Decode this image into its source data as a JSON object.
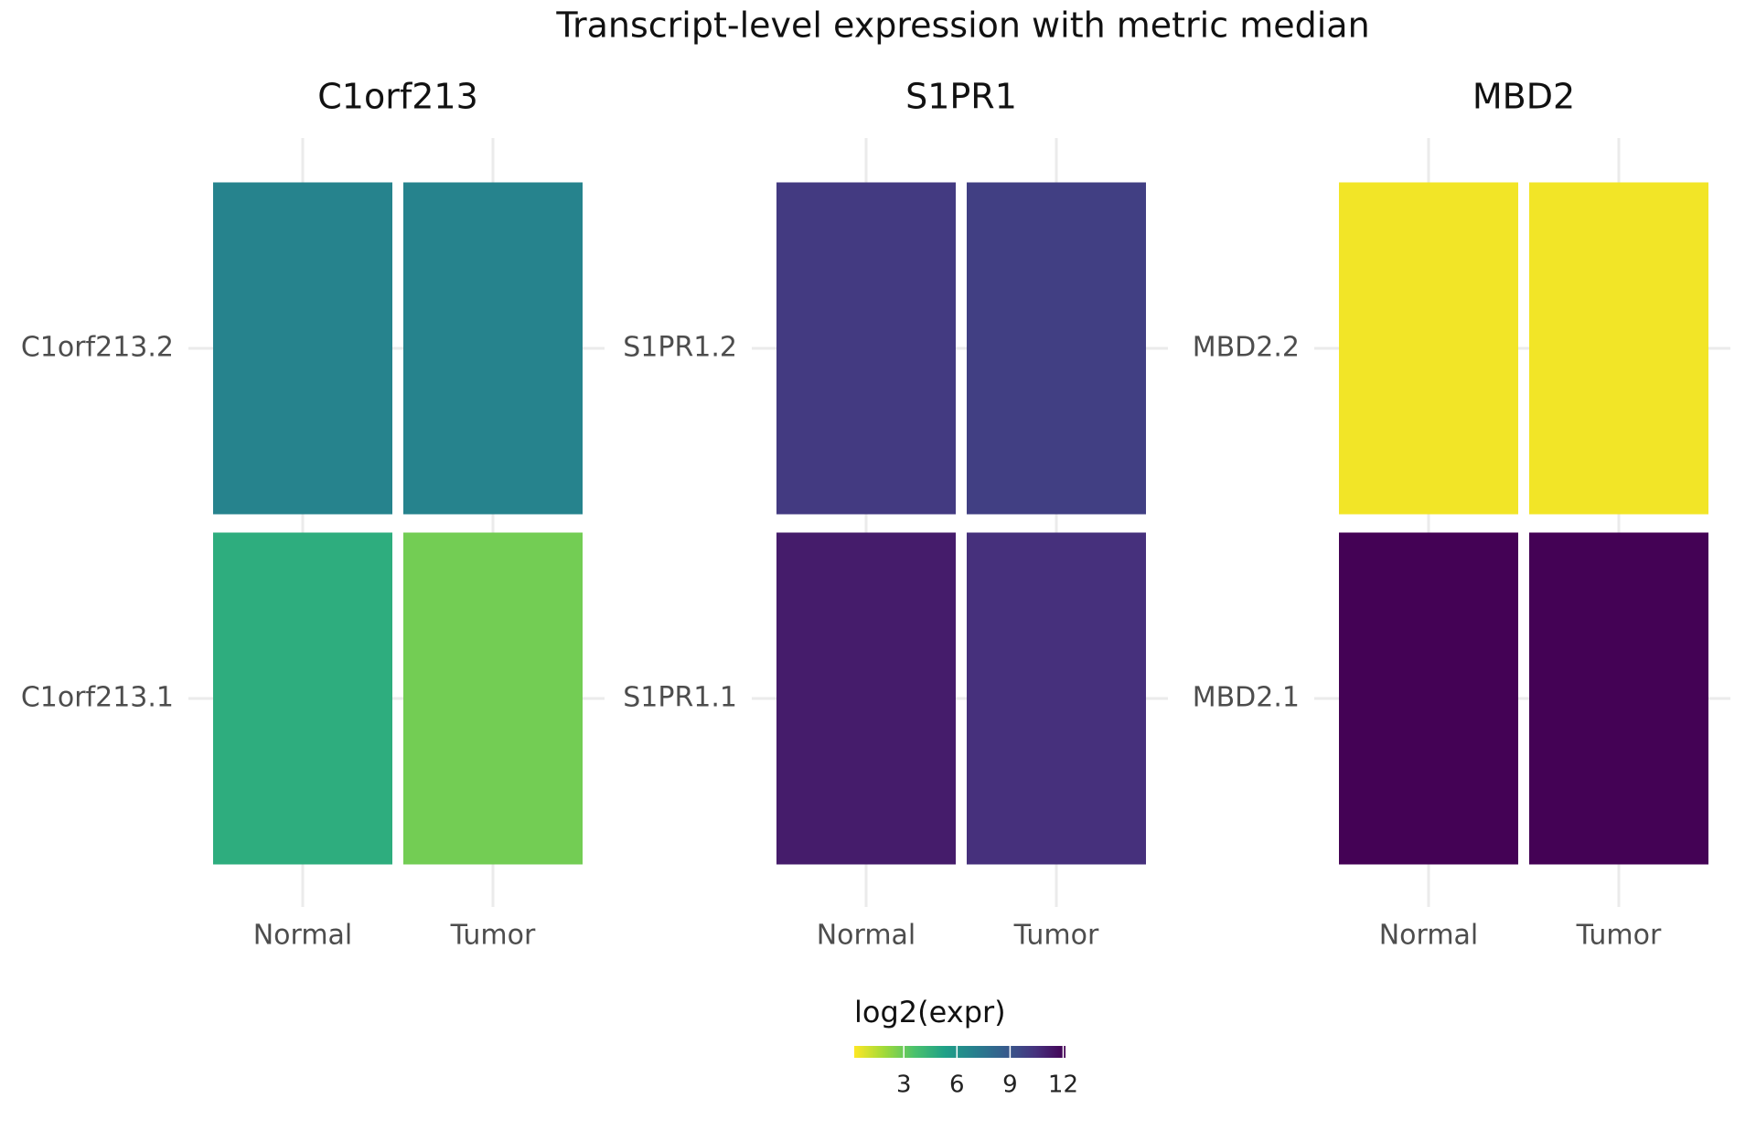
{
  "chart_data": {
    "type": "heatmap",
    "title": "Transcript-level expression with metric median",
    "grid": true,
    "facets": [
      {
        "title": "C1orf213",
        "x": [
          "Normal",
          "Tumor"
        ],
        "y": [
          "C1orf213.1",
          "C1orf213.2"
        ],
        "values": [
          [
            4.7,
            2.8
          ],
          [
            6.8,
            6.8
          ]
        ]
      },
      {
        "title": "S1PR1",
        "x": [
          "Normal",
          "Tumor"
        ],
        "y": [
          "S1PR1.1",
          "S1PR1.2"
        ],
        "values": [
          [
            11.2,
            10.5
          ],
          [
            10.1,
            9.9
          ]
        ]
      },
      {
        "title": "MBD2",
        "x": [
          "Normal",
          "Tumor"
        ],
        "y": [
          "MBD2.1",
          "MBD2.2"
        ],
        "values": [
          [
            12.1,
            12.1
          ],
          [
            0.4,
            0.4
          ]
        ]
      }
    ],
    "legend": {
      "title": "log2(expr)",
      "position": "bottom",
      "lim": [
        0.2,
        12.13
      ],
      "ticks": [
        3,
        6,
        9,
        12
      ],
      "colorscale": [
        "#fde725",
        "#a0da39",
        "#4ac16d",
        "#1fa187",
        "#277f8e",
        "#365c8d",
        "#46327e",
        "#440154"
      ]
    }
  }
}
